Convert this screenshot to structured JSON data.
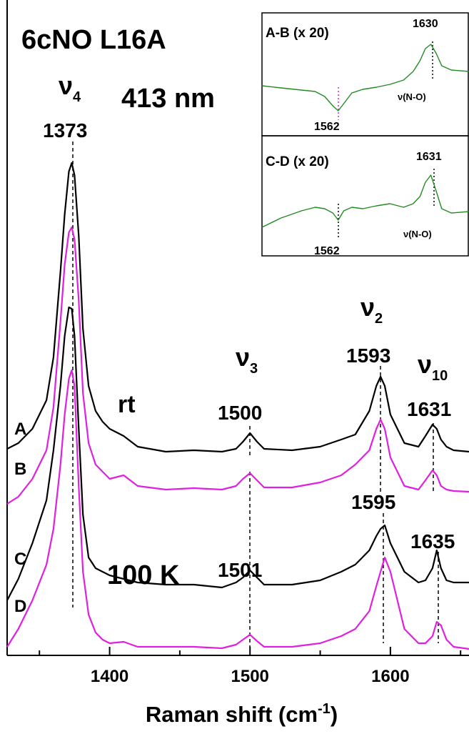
{
  "chart_data": [
    {
      "type": "line",
      "title": "6cNO L16A",
      "x_label": "Raman shift (cm",
      "x_label_sup": "-1",
      "x_label_end": ")",
      "xlim": [
        1327,
        1656
      ],
      "xticks": [
        1400,
        1500,
        1600
      ],
      "xminorticks": [
        1350,
        1450,
        1550,
        1650
      ],
      "ylim": [
        0,
        917
      ],
      "x": [
        1327,
        1335,
        1345,
        1355,
        1360,
        1365,
        1368,
        1371,
        1373,
        1375,
        1378,
        1381,
        1385,
        1390,
        1395,
        1400,
        1410,
        1420,
        1440,
        1460,
        1480,
        1490,
        1495,
        1500,
        1505,
        1510,
        1530,
        1550,
        1565,
        1575,
        1585,
        1590,
        1593,
        1596,
        1600,
        1610,
        1620,
        1625,
        1630,
        1633,
        1636,
        1640,
        1645,
        1656
      ],
      "series": [
        {
          "name": "A",
          "color": "#000000",
          "values": [
            289,
            297,
            317,
            357,
            417,
            537,
            617,
            677,
            689,
            672,
            587,
            457,
            377,
            342,
            327,
            317,
            307,
            292,
            285,
            287,
            285,
            289,
            299,
            311,
            299,
            289,
            287,
            292,
            302,
            309,
            342,
            377,
            390,
            377,
            337,
            297,
            292,
            307,
            323,
            317,
            302,
            292,
            287,
            285
          ]
        },
        {
          "name": "B",
          "color": "#e020e0",
          "values": [
            212,
            222,
            247,
            287,
            347,
            467,
            547,
            592,
            599,
            582,
            497,
            367,
            297,
            267,
            257,
            247,
            252,
            237,
            232,
            234,
            232,
            237,
            247,
            255,
            245,
            235,
            235,
            242,
            252,
            267,
            287,
            317,
            330,
            317,
            277,
            237,
            232,
            245,
            259,
            252,
            237,
            232,
            230,
            229
          ]
        },
        {
          "name": "C",
          "color": "#000000",
          "values": [
            77,
            107,
            157,
            217,
            287,
            377,
            447,
            487,
            485,
            447,
            317,
            197,
            137,
            122,
            117,
            112,
            107,
            102,
            99,
            99,
            95,
            102,
            109,
            119,
            109,
            99,
            99,
            105,
            117,
            127,
            147,
            167,
            177,
            182,
            157,
            117,
            102,
            105,
            122,
            147,
            122,
            105,
            102,
            102
          ]
        },
        {
          "name": "D",
          "color": "#e020e0",
          "values": [
            12,
            37,
            77,
            127,
            177,
            267,
            337,
            387,
            399,
            377,
            237,
            117,
            57,
            32,
            22,
            17,
            19,
            12,
            12,
            12,
            10,
            15,
            22,
            29,
            20,
            12,
            12,
            17,
            27,
            37,
            62,
            97,
            117,
            137,
            117,
            37,
            17,
            17,
            27,
            47,
            42,
            22,
            12,
            9
          ]
        }
      ],
      "annotations": [
        {
          "text": "ν",
          "sub": "4"
        },
        {
          "text": "1373"
        },
        {
          "text": "413 nm"
        },
        {
          "text": "rt"
        },
        {
          "text": "ν",
          "sub": "3"
        },
        {
          "text": "1500"
        },
        {
          "text": "ν",
          "sub": "2"
        },
        {
          "text": "1593"
        },
        {
          "text": "ν",
          "sub": "10"
        },
        {
          "text": "1631"
        },
        {
          "text": "1595"
        },
        {
          "text": "1635"
        },
        {
          "text": "100 K"
        },
        {
          "text": "1501"
        }
      ]
    },
    {
      "type": "line",
      "title": "A-B (x 20)",
      "xlim": [
        1506,
        1658
      ],
      "ylim": [
        0,
        172
      ],
      "x": [
        1506,
        1520,
        1535,
        1545,
        1552,
        1558,
        1562,
        1566,
        1572,
        1580,
        1590,
        1600,
        1610,
        1617,
        1622,
        1626,
        1630,
        1634,
        1638,
        1645,
        1658
      ],
      "series": [
        {
          "color": "#228b22",
          "values": [
            70,
            67,
            64,
            62,
            55,
            42,
            35,
            45,
            60,
            65,
            68,
            72,
            78,
            90,
            105,
            122,
            128,
            115,
            98,
            92,
            90
          ]
        }
      ],
      "annotations": [
        {
          "text": "1630"
        },
        {
          "text": "1562",
          "color": "#e020e0"
        },
        {
          "text": "ν(N-O)"
        }
      ]
    },
    {
      "type": "line",
      "title": "C-D (x 20)",
      "xlim": [
        1506,
        1658
      ],
      "ylim": [
        0,
        168
      ],
      "x": [
        1506,
        1520,
        1535,
        1545,
        1552,
        1558,
        1562,
        1566,
        1572,
        1580,
        1590,
        1600,
        1610,
        1617,
        1622,
        1626,
        1630,
        1634,
        1638,
        1645,
        1658
      ],
      "series": [
        {
          "color": "#228b22",
          "values": [
            40,
            53,
            63,
            68,
            66,
            60,
            50,
            63,
            68,
            66,
            70,
            73,
            68,
            73,
            83,
            103,
            113,
            90,
            66,
            60,
            62
          ]
        }
      ],
      "annotations": [
        {
          "text": "1631"
        },
        {
          "text": "1562",
          "color": "#e020e0"
        },
        {
          "text": "ν(N-O)"
        }
      ]
    }
  ]
}
